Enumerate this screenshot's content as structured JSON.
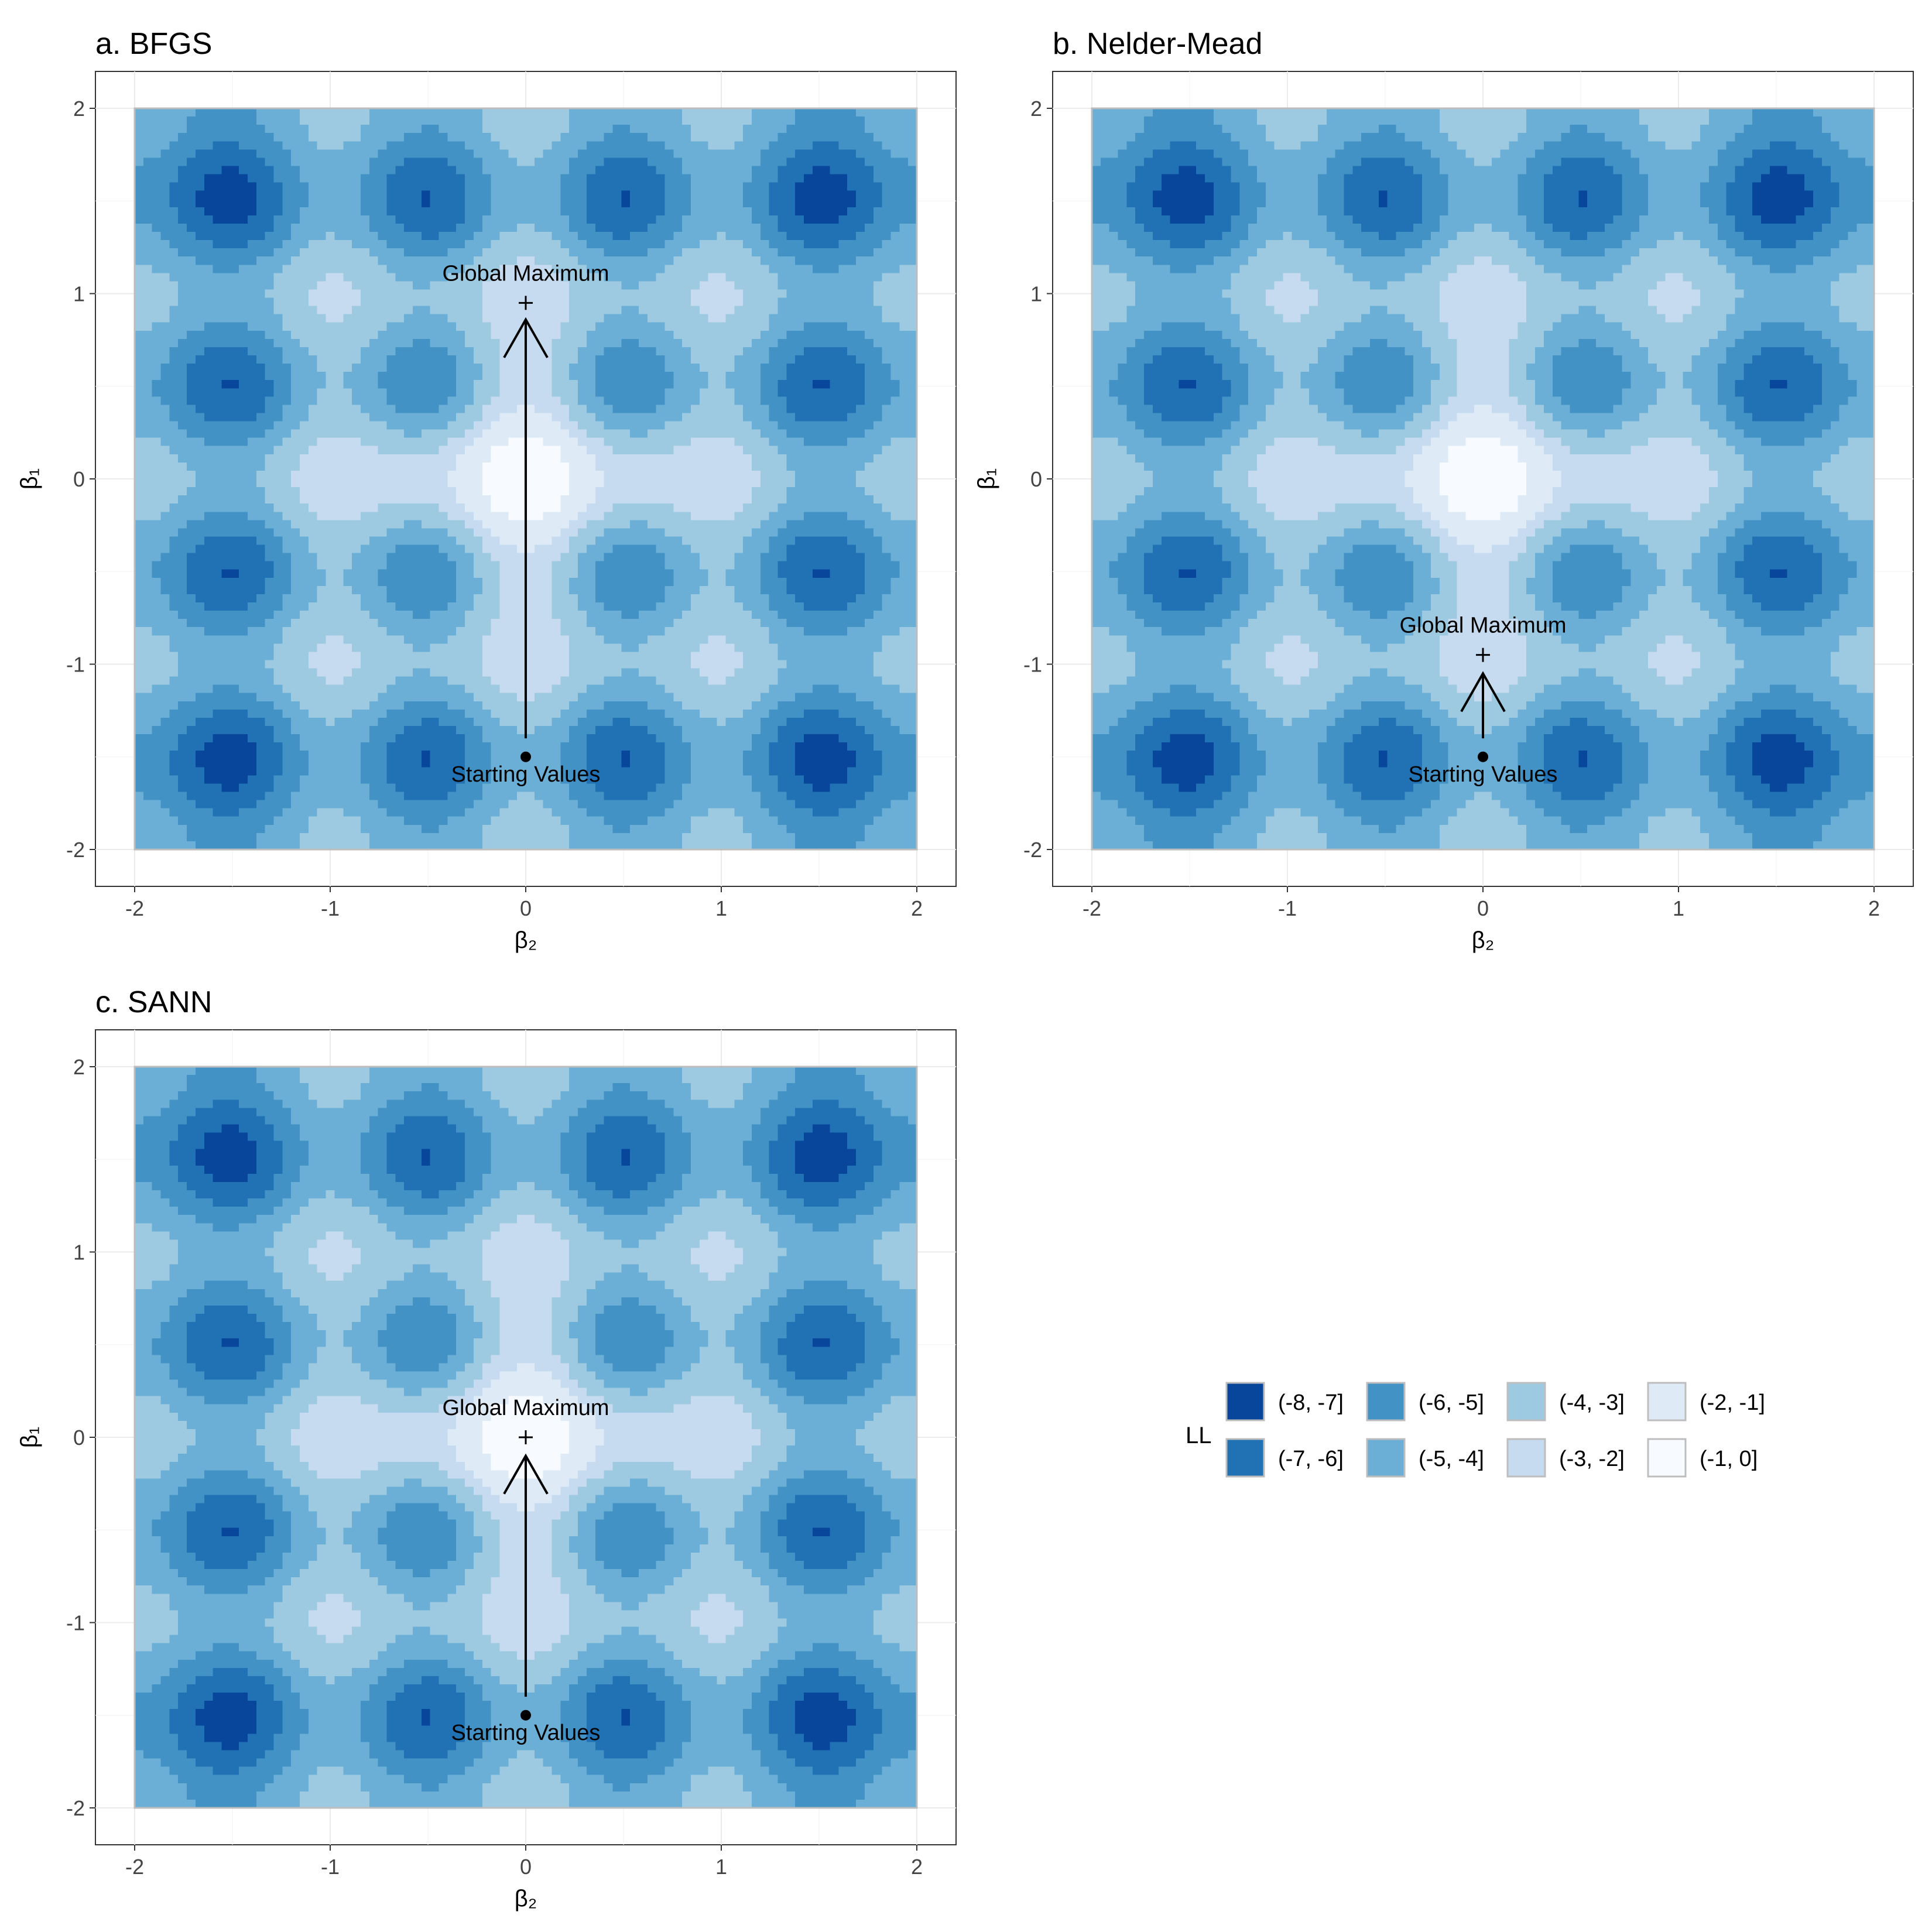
{
  "figure": {
    "legend": {
      "title": "LL",
      "placement": "bottom-right"
    }
  },
  "chart_data": [
    {
      "type": "heatmap",
      "subtype": "filled-contour",
      "title": "a. BFGS",
      "xlabel": "β₂",
      "ylabel": "β₁",
      "xlim": [
        -2,
        2
      ],
      "ylim": [
        -2,
        2
      ],
      "xticks": [
        "-2",
        "-1",
        "0",
        "1",
        "2"
      ],
      "yticks": [
        "-2",
        "-1",
        "0",
        "1",
        "2"
      ],
      "grid": true,
      "levels": [
        "(-8, -7]",
        "(-7, -6]",
        "(-6, -5]",
        "(-5, -4]",
        "(-4, -3]",
        "(-3, -2]",
        "(-2, -1]",
        "(-1, 0]"
      ],
      "colors": [
        "#08469b",
        "#2171b5",
        "#4292c6",
        "#6baed6",
        "#9ecae1",
        "#c6dbef",
        "#deebf7",
        "#f7fbff"
      ],
      "start": {
        "x": 0,
        "y": -1.5,
        "label": "Starting Values"
      },
      "maximum": {
        "x": 0,
        "y": 0.95,
        "label": "Global Maximum"
      },
      "arrow": {
        "from": [
          0,
          -1.4
        ],
        "to": [
          0,
          0.86
        ]
      }
    },
    {
      "type": "heatmap",
      "subtype": "filled-contour",
      "title": "b. Nelder-Mead",
      "xlabel": "β₂",
      "ylabel": "β₁",
      "xlim": [
        -2,
        2
      ],
      "ylim": [
        -2,
        2
      ],
      "xticks": [
        "-2",
        "-1",
        "0",
        "1",
        "2"
      ],
      "yticks": [
        "-2",
        "-1",
        "0",
        "1",
        "2"
      ],
      "grid": true,
      "levels": [
        "(-8, -7]",
        "(-7, -6]",
        "(-6, -5]",
        "(-5, -4]",
        "(-4, -3]",
        "(-3, -2]",
        "(-2, -1]",
        "(-1, 0]"
      ],
      "colors": [
        "#08469b",
        "#2171b5",
        "#4292c6",
        "#6baed6",
        "#9ecae1",
        "#c6dbef",
        "#deebf7",
        "#f7fbff"
      ],
      "start": {
        "x": 0,
        "y": -1.5,
        "label": "Starting Values"
      },
      "maximum": {
        "x": 0,
        "y": -0.95,
        "label": "Global Maximum"
      },
      "arrow": {
        "from": [
          0,
          -1.4
        ],
        "to": [
          0,
          -1.05
        ]
      }
    },
    {
      "type": "heatmap",
      "subtype": "filled-contour",
      "title": "c. SANN",
      "xlabel": "β₂",
      "ylabel": "β₁",
      "xlim": [
        -2,
        2
      ],
      "ylim": [
        -2,
        2
      ],
      "xticks": [
        "-2",
        "-1",
        "0",
        "1",
        "2"
      ],
      "yticks": [
        "-2",
        "-1",
        "0",
        "1",
        "2"
      ],
      "grid": true,
      "levels": [
        "(-8, -7]",
        "(-7, -6]",
        "(-6, -5]",
        "(-5, -4]",
        "(-4, -3]",
        "(-3, -2]",
        "(-2, -1]",
        "(-1, 0]"
      ],
      "colors": [
        "#08469b",
        "#2171b5",
        "#4292c6",
        "#6baed6",
        "#9ecae1",
        "#c6dbef",
        "#deebf7",
        "#f7fbff"
      ],
      "start": {
        "x": 0,
        "y": -1.5,
        "label": "Starting Values"
      },
      "maximum": {
        "x": 0,
        "y": 0,
        "label": "Global Maximum"
      },
      "arrow": {
        "from": [
          0,
          -1.4
        ],
        "to": [
          0,
          -0.1
        ]
      }
    }
  ]
}
